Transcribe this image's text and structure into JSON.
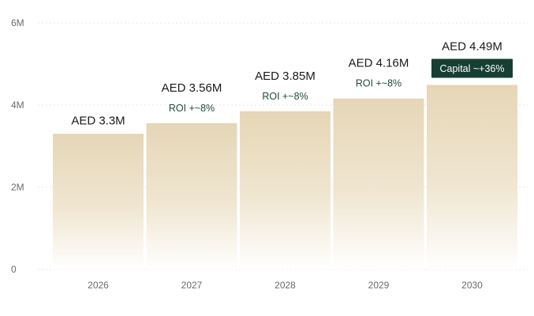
{
  "chart_data": {
    "type": "bar",
    "categories": [
      "2026",
      "2027",
      "2028",
      "2029",
      "2030"
    ],
    "values": [
      3.3,
      3.56,
      3.85,
      4.16,
      4.49
    ],
    "unit": "M",
    "ylim": [
      0,
      6
    ],
    "yticks": [
      {
        "value": 0,
        "label": "0"
      },
      {
        "value": 2,
        "label": "2M"
      },
      {
        "value": 4,
        "label": "4M"
      },
      {
        "value": 6,
        "label": "6M"
      }
    ],
    "value_labels": [
      "AED 3.3M",
      "AED 3.56M",
      "AED 3.85M",
      "AED 4.16M",
      "AED 4.49M"
    ],
    "annotations": [
      {
        "category_index": 1,
        "text": "ROI +~8%",
        "style": "text"
      },
      {
        "category_index": 2,
        "text": "ROI +~8%",
        "style": "text"
      },
      {
        "category_index": 3,
        "text": "ROI +~8%",
        "style": "text"
      },
      {
        "category_index": 4,
        "text": "Capital ~+36%",
        "style": "badge"
      }
    ],
    "grid": true,
    "title": "",
    "xlabel": "",
    "ylabel": "",
    "colors": {
      "bar_top": "#e5d6b6",
      "bar_bottom": "#ffffff",
      "badge_bg": "#173e33",
      "annotation_text": "#1f4a3f"
    }
  }
}
